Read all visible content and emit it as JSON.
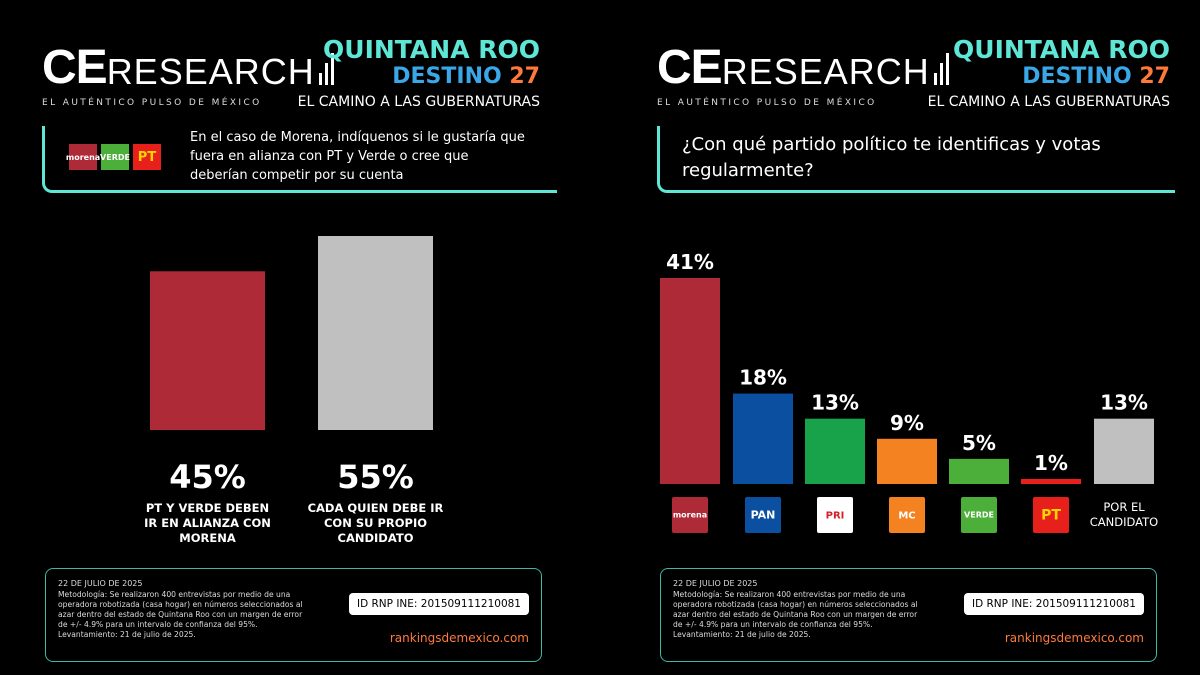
{
  "brand": {
    "logo_ce": "CE",
    "logo_rest": "RESEARCH",
    "tagline": "EL AUTÉNTICO PULSO DE MÉXICO"
  },
  "header": {
    "title": "QUINTANA ROO",
    "destino": "DESTINO",
    "destino_num": "27",
    "subtitle": "EL CAMINO A LAS GUBERNATURAS"
  },
  "colors": {
    "accent": "#5ee6d6",
    "morena": "#ad2a36",
    "pan": "#0b4fa0",
    "pri": "#18a24a",
    "mc": "#f58220",
    "verde": "#4caf3a",
    "pt": "#e8201c",
    "gray": "#c0c0c0"
  },
  "left": {
    "question": "En el caso de Morena, indíquenos si le gustaría que fuera en alianza con PT y Verde o cree que deberían competir por su cuenta",
    "party_logos": [
      "morena",
      "VERDE",
      "PT"
    ]
  },
  "right": {
    "question": "¿Con qué partido político te identificas y votas regularmente?"
  },
  "chart_data": [
    {
      "type": "bar",
      "categories": [
        "PT Y VERDE DEBEN IR EN ALIANZA CON MORENA",
        "CADA QUIEN DEBE IR CON SU PROPIO CANDIDATO"
      ],
      "values": [
        45,
        55
      ],
      "value_labels": [
        "45%",
        "55%"
      ],
      "colors": [
        "#ad2a36",
        "#c0c0c0"
      ]
    },
    {
      "type": "bar",
      "categories": [
        "morena",
        "PAN",
        "PRI",
        "MOVIMIENTO CIUDADANO",
        "VERDE",
        "PT",
        "POR EL CANDIDATO"
      ],
      "values": [
        41,
        18,
        13,
        9,
        5,
        1,
        13
      ],
      "value_labels": [
        "41%",
        "18%",
        "13%",
        "9%",
        "5%",
        "1%",
        "13%"
      ],
      "colors": [
        "#ad2a36",
        "#0b4fa0",
        "#18a24a",
        "#f58220",
        "#4caf3a",
        "#e8201c",
        "#c0c0c0"
      ],
      "category_labels_shown": [
        "",
        "",
        "",
        "",
        "",
        "",
        "POR EL CANDIDATO"
      ]
    }
  ],
  "footer": {
    "date": "22 DE JULIO DE 2025",
    "methodology": "Metodología: Se realizaron 400 entrevistas por medio de una operadora robotizada (casa hogar) en números seleccionados al azar dentro del estado de Quintana Roo con un margen de error de +/- 4.9% para un intervalo de confianza del 95%.",
    "levantamiento": "Levantamiento: 21 de julio de 2025.",
    "id": "ID RNP INE: 201509111210081",
    "url": "rankingsdemexico.com"
  }
}
